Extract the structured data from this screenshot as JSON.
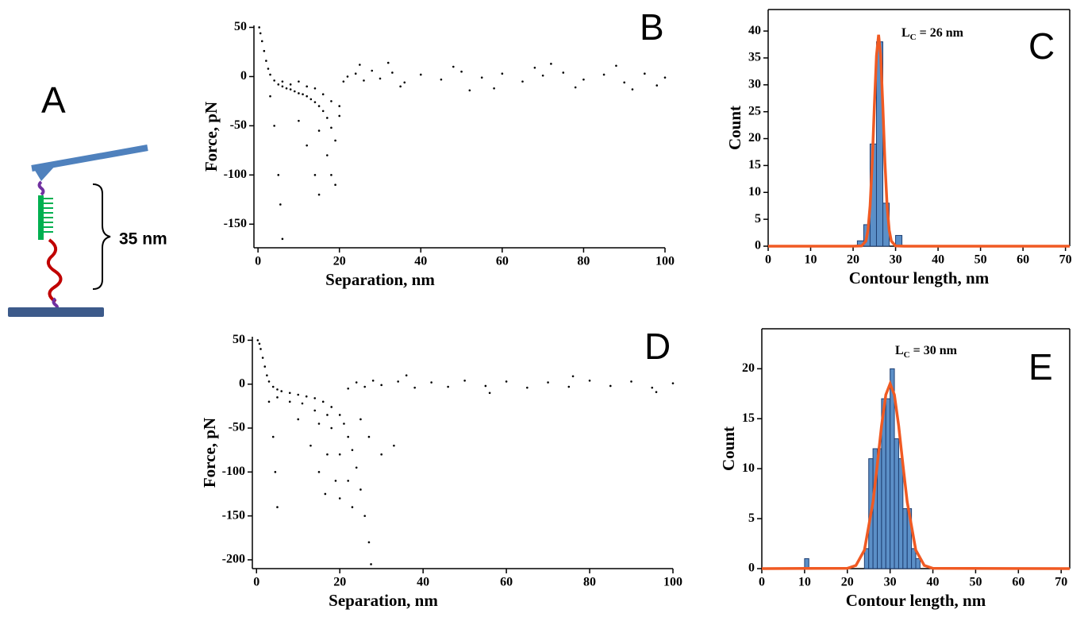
{
  "panel_a": {
    "label": "A",
    "distance_label": "35 nm"
  },
  "chart_data": [
    {
      "type": "scatter",
      "label": "B",
      "x_label": "Separation, nm",
      "y_label": "Force, pN",
      "color": "#000000",
      "xlim": [
        -1,
        100
      ],
      "ylim": [
        -174,
        52
      ],
      "xticks": [
        0,
        20,
        40,
        60,
        80,
        100
      ],
      "yticks": [
        50,
        0,
        -50,
        -100,
        -150
      ],
      "x": [
        0.3,
        0.6,
        1,
        1.5,
        2,
        2.5,
        3,
        4,
        5,
        6,
        7,
        8,
        9,
        10,
        11,
        12,
        13,
        14,
        15,
        16,
        17,
        18,
        19,
        20,
        3,
        4,
        5,
        5.5,
        6,
        10,
        12,
        14,
        15,
        15,
        17,
        18,
        19,
        6,
        8,
        10,
        12,
        14,
        16,
        18,
        20,
        21,
        22,
        24,
        26,
        28,
        30,
        33,
        36,
        40,
        45,
        50,
        55,
        60,
        65,
        70,
        75,
        80,
        85,
        90,
        95,
        100,
        25,
        35,
        48,
        58,
        68,
        78,
        88,
        98,
        32,
        52,
        72,
        92
      ],
      "values": [
        50,
        44,
        36,
        26,
        16,
        8,
        2,
        -4,
        -8,
        -10,
        -12,
        -13,
        -15,
        -17,
        -18,
        -20,
        -23,
        -26,
        -30,
        -35,
        -42,
        -52,
        -65,
        -40,
        -20,
        -50,
        -100,
        -130,
        -165,
        -45,
        -70,
        -100,
        -120,
        -55,
        -80,
        -100,
        -110,
        -5,
        -8,
        -5,
        -10,
        -12,
        -18,
        -25,
        -30,
        -5,
        0,
        3,
        -4,
        6,
        -2,
        4,
        -6,
        2,
        -3,
        5,
        -1,
        3,
        -5,
        1,
        4,
        -3,
        2,
        -6,
        3,
        -1,
        12,
        -10,
        10,
        -12,
        9,
        -11,
        11,
        -9,
        14,
        -14,
        13,
        -13
      ]
    },
    {
      "type": "histogram",
      "label": "C",
      "x_label": "Contour length, nm",
      "y_label": "Count",
      "annotation": {
        "main": "L",
        "sub": "C",
        "rest": " = 26 nm"
      },
      "color": "#5b8fc7",
      "edge_color": "#1f3f73",
      "xlim": [
        0,
        71
      ],
      "ylim": [
        0,
        44
      ],
      "xticks": [
        0,
        10,
        20,
        30,
        40,
        50,
        60,
        70
      ],
      "yticks": [
        0,
        5,
        10,
        15,
        20,
        25,
        30,
        35,
        40
      ],
      "bins": [
        21,
        22.5,
        24,
        25.5,
        27,
        28.5,
        30,
        31.5
      ],
      "counts": [
        1,
        4,
        19,
        38,
        8,
        0,
        2
      ],
      "fit": {
        "color": "#f05a23",
        "x": [
          0,
          20,
          22,
          23,
          23.5,
          24,
          24.5,
          25,
          25.5,
          26,
          26.5,
          27,
          27.5,
          28,
          28.5,
          29,
          30,
          32,
          71
        ],
        "values": [
          0,
          0,
          0.05,
          0.95,
          2.98,
          7.5,
          15.5,
          26,
          35.4,
          39.3,
          35.4,
          26,
          15.5,
          7.5,
          2.98,
          0.95,
          0.05,
          0,
          0
        ]
      }
    },
    {
      "type": "scatter",
      "label": "D",
      "x_label": "Separation, nm",
      "y_label": "Force, pN",
      "color": "#000000",
      "xlim": [
        -1,
        100
      ],
      "ylim": [
        -210,
        54
      ],
      "xticks": [
        0,
        20,
        40,
        60,
        80,
        100
      ],
      "yticks": [
        50,
        0,
        -50,
        -100,
        -150,
        -200
      ],
      "x": [
        0.3,
        0.7,
        1,
        1.5,
        2,
        2.5,
        3,
        4,
        5,
        6,
        8,
        10,
        12,
        14,
        16,
        18,
        20,
        21,
        22,
        23,
        24,
        25,
        26,
        27,
        27.5,
        3,
        4,
        4.5,
        5,
        10,
        13,
        15,
        16.5,
        15,
        17,
        19,
        20,
        18,
        20,
        22,
        23,
        5,
        8,
        11,
        14,
        17,
        22,
        24,
        26,
        28,
        30,
        34,
        38,
        42,
        46,
        50,
        55,
        60,
        65,
        70,
        75,
        80,
        85,
        90,
        95,
        100,
        27,
        30,
        33,
        25,
        36,
        56,
        76,
        96
      ],
      "values": [
        50,
        46,
        40,
        30,
        20,
        10,
        3,
        -3,
        -6,
        -8,
        -10,
        -12,
        -14,
        -16,
        -20,
        -26,
        -35,
        -45,
        -60,
        -75,
        -95,
        -120,
        -150,
        -180,
        -205,
        -20,
        -60,
        -100,
        -140,
        -40,
        -70,
        -100,
        -125,
        -45,
        -80,
        -110,
        -130,
        -50,
        -80,
        -110,
        -140,
        -15,
        -20,
        -22,
        -30,
        -35,
        -5,
        2,
        -3,
        4,
        -1,
        3,
        -4,
        2,
        -3,
        4,
        -2,
        3,
        -4,
        2,
        -3,
        4,
        -2,
        3,
        -4,
        1,
        -60,
        -80,
        -70,
        -40,
        10,
        -10,
        9,
        -9
      ]
    },
    {
      "type": "histogram",
      "label": "E",
      "x_label": "Contour length, nm",
      "y_label": "Count",
      "annotation": {
        "main": "L",
        "sub": "C",
        "rest": " = 30 nm"
      },
      "color": "#5b8fc7",
      "edge_color": "#1f3f73",
      "xlim": [
        0,
        72
      ],
      "ylim": [
        0,
        24
      ],
      "xticks": [
        0,
        10,
        20,
        30,
        40,
        50,
        60,
        70
      ],
      "yticks": [
        0,
        5,
        10,
        15,
        20
      ],
      "bins": [
        10,
        11,
        12,
        13,
        14,
        15,
        16,
        17,
        18,
        19,
        20,
        21,
        22,
        23,
        24,
        25,
        26,
        27,
        28,
        29,
        30,
        31,
        32,
        33,
        34,
        35,
        36,
        37
      ],
      "counts": [
        1,
        0,
        0,
        0,
        0,
        0,
        0,
        0,
        0,
        0,
        0,
        0,
        0,
        0,
        2,
        11,
        12,
        12,
        17,
        17,
        20,
        13,
        11,
        6,
        6,
        2,
        1
      ],
      "fit": {
        "color": "#f05a23",
        "x": [
          0,
          20,
          22,
          24,
          26,
          27,
          28,
          29,
          30,
          31,
          32,
          33,
          34,
          36,
          38,
          40,
          72
        ],
        "values": [
          0,
          0.03,
          0.31,
          1.86,
          6.67,
          10.4,
          14.3,
          17.4,
          18.5,
          17.4,
          14.3,
          10.4,
          6.67,
          1.86,
          0.31,
          0.03,
          0
        ]
      }
    }
  ]
}
